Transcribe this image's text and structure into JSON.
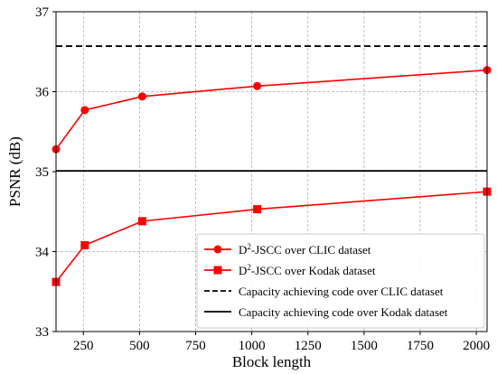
{
  "chart_data": {
    "type": "line",
    "xlabel": "Block length",
    "ylabel": "PSNR (dB)",
    "xlim": [
      128,
      2048
    ],
    "ylim": [
      33,
      37
    ],
    "x_ticks": [
      250,
      500,
      750,
      1000,
      1250,
      1500,
      1750,
      2000
    ],
    "y_ticks": [
      33,
      34,
      35,
      36,
      37
    ],
    "grid": true,
    "legend_position": "bottom-right",
    "series": [
      {
        "name": "D2-JSCC over CLIC dataset",
        "name_main": "D",
        "name_sup": "2",
        "name_rest": "-JSCC over CLIC dataset",
        "color": "#ff0000",
        "marker": "circle",
        "linestyle": "solid",
        "x": [
          128,
          256,
          512,
          1024,
          2048
        ],
        "y": [
          35.28,
          35.77,
          35.94,
          36.07,
          36.27
        ]
      },
      {
        "name": "D2-JSCC over Kodak dataset",
        "name_main": "D",
        "name_sup": "2",
        "name_rest": "-JSCC over Kodak dataset",
        "color": "#ff0000",
        "marker": "square",
        "linestyle": "solid",
        "x": [
          128,
          256,
          512,
          1024,
          2048
        ],
        "y": [
          33.62,
          34.08,
          34.38,
          34.53,
          34.75
        ]
      }
    ],
    "reference_lines": [
      {
        "name": "Capacity achieving code over CLIC dataset",
        "color": "#000000",
        "linestyle": "dashed",
        "y": 36.57
      },
      {
        "name": "Capacity achieving code over Kodak dataset",
        "color": "#000000",
        "linestyle": "solid",
        "y": 35.01
      }
    ]
  }
}
